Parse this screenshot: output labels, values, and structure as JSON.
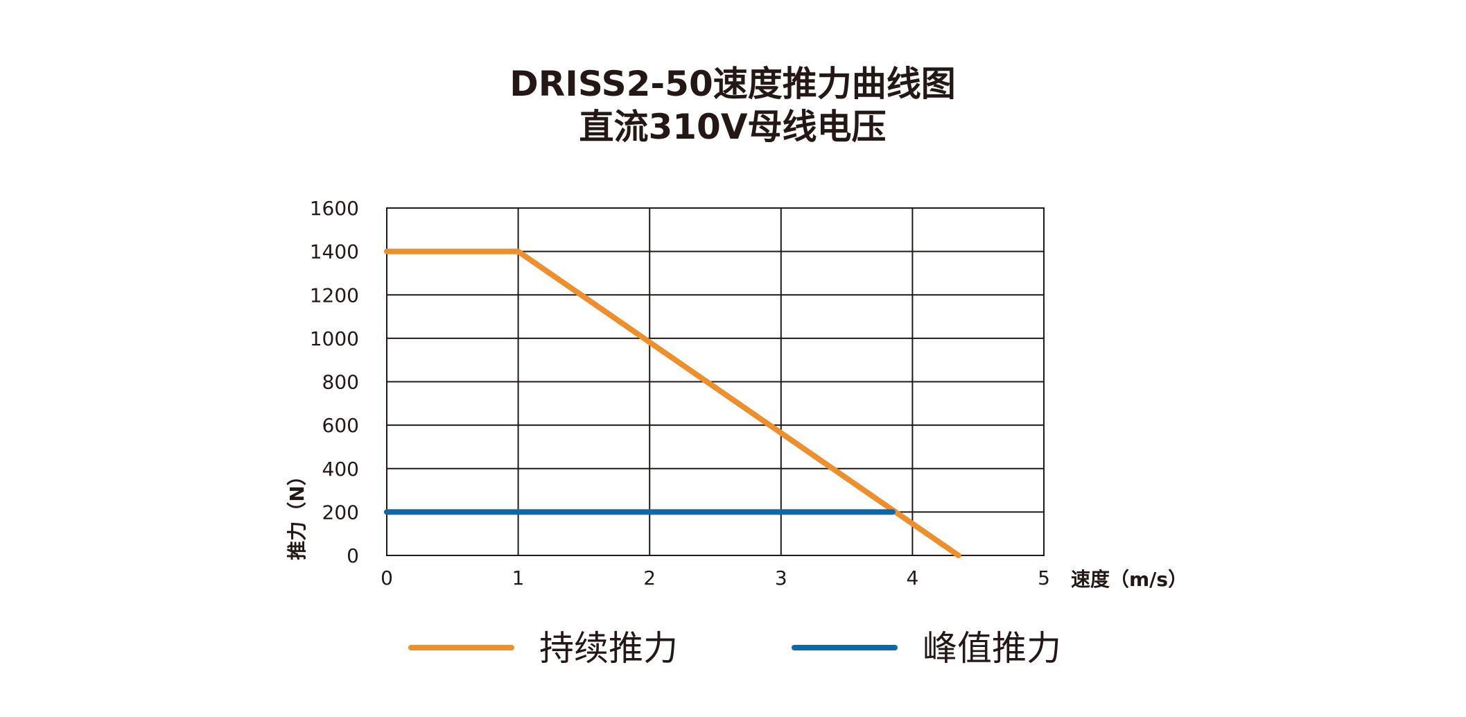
{
  "chart_data": {
    "type": "line",
    "title": [
      "DRISS2-50速度推力曲线图",
      "直流310V母线电压"
    ],
    "xlabel": "速度（m/s）",
    "ylabel": "推力（N）",
    "xlim": [
      0,
      5
    ],
    "ylim": [
      0,
      1600
    ],
    "xticks": [
      "0",
      "1",
      "2",
      "3",
      "4",
      "5"
    ],
    "yticks": [
      "0",
      "200",
      "400",
      "600",
      "800",
      "1000",
      "1200",
      "1400",
      "1600"
    ],
    "grid": true,
    "legend_position": "bottom",
    "series": [
      {
        "name": "持续推力",
        "color": "#ee8f2e",
        "points": [
          [
            0,
            1400
          ],
          [
            1,
            1400
          ],
          [
            4.35,
            0
          ]
        ]
      },
      {
        "name": "峰值推力",
        "color": "#0f67a8",
        "points": [
          [
            0,
            200
          ],
          [
            3.85,
            200
          ]
        ]
      }
    ]
  }
}
